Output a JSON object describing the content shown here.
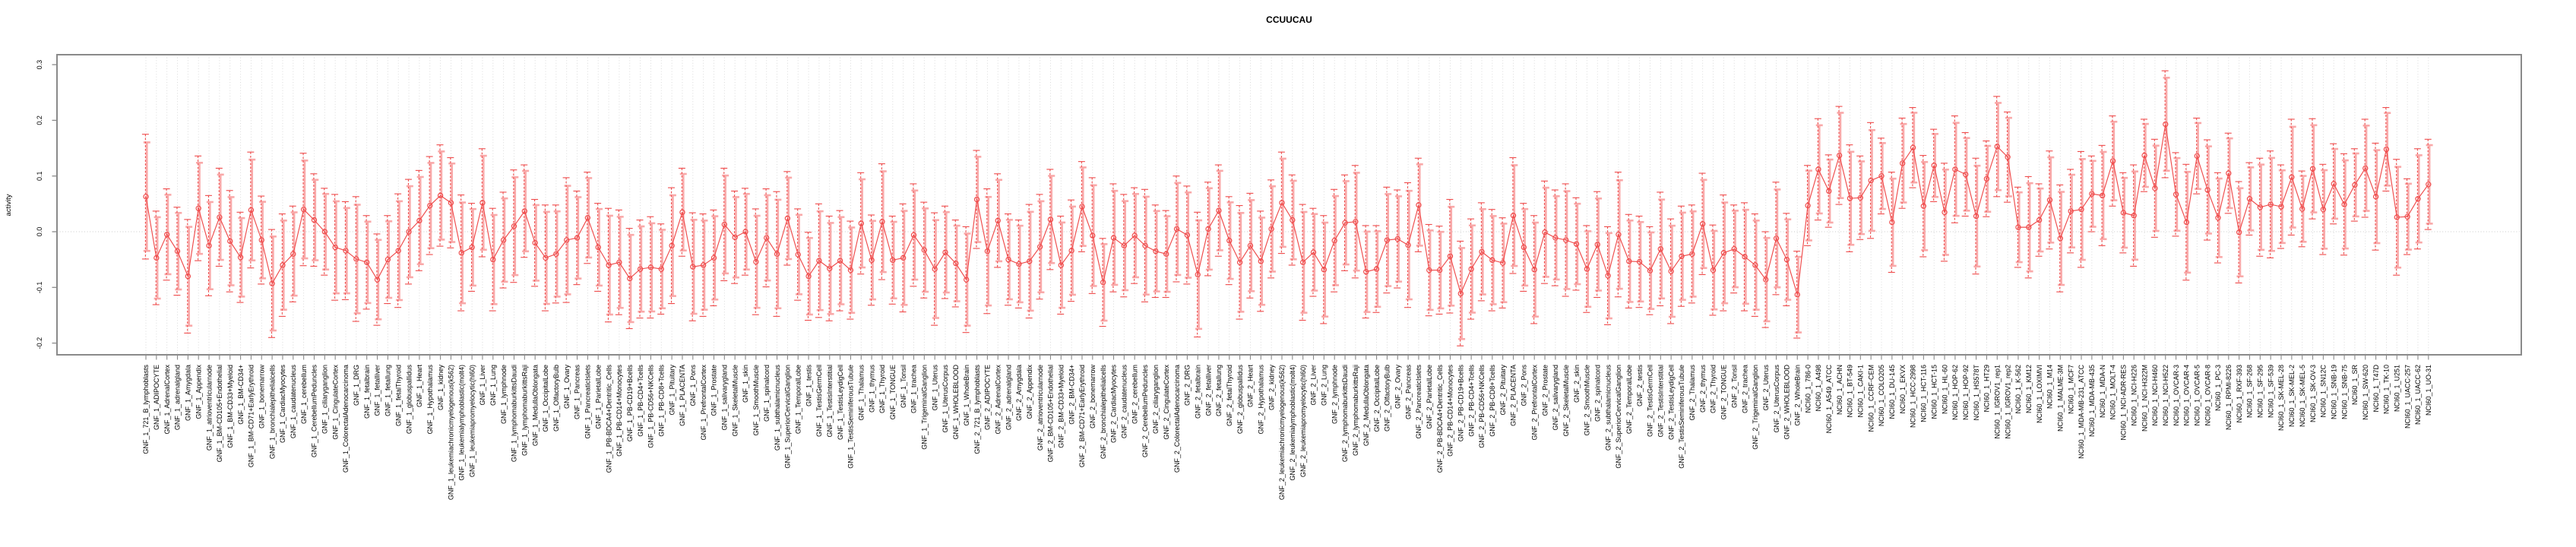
{
  "chart_data": {
    "type": "line",
    "title": "CCUUCAU",
    "xlabel": "",
    "ylabel": "activity",
    "ylim": [
      -0.25,
      0.33
    ],
    "yticks": [
      0.3,
      0.2,
      0.1,
      0.0,
      -0.1,
      -0.2
    ],
    "grid": "vertical dotted gridline per category; dotted horizontal line at 0",
    "legend": "none",
    "marker": "open-circle",
    "line_style": "solid red connecting line with per-point error bars (thin dashed red bar overlaid on thick light-pink bar, both with caps)",
    "colors": {
      "line": "#ef4b4b",
      "marker": "#ef4b4b",
      "errorbar_dashed": "#ef4b4b",
      "errorbar_light": "#f9a9a9",
      "box": "#8a8a8a",
      "grid": "#d6d6d6",
      "zero_line": "#c9c9c9"
    },
    "categories": [
      "GNF_1_721_B_lymphoblasts",
      "GNF_1_ADIPOCYTE",
      "GNF_1_AdrenalCortex",
      "GNF_1_adrenalgland",
      "GNF_1_Amygdala",
      "GNF_1_Appendix",
      "GNF_1_atrioventricularnode",
      "GNF_1_BM-CD105+Endothelial",
      "GNF_1_BM-CD33+Myeloid",
      "GNF_1_BM-CD34+",
      "GNF_1_BM-CD71+EarlyErythroid",
      "GNF_1_bonemarrow",
      "GNF_1_bronchialepithelialcells",
      "GNF_1_CardiacMyocytes",
      "GNF_1_caudatenucleus",
      "GNF_1_cerebellum",
      "GNF_1_CerebellumPeduncles",
      "GNF_1_ciliaryganglion",
      "GNF_1_CingulateCortex",
      "GNF_1_ColorectalAdenocarcinoma",
      "GNF_1_DRG",
      "GNF_1_fetalbrain",
      "GNF_1_fetalliver",
      "GNF_1_fetallung",
      "GNF_1_fetalThyroid",
      "GNF_1_globuspallidus",
      "GNF_1_Heart",
      "GNF_1_Hypothalamus",
      "GNF_1_kidney",
      "GNF_1_leukemiachronicmyelogenous(k562)",
      "GNF_1_leukemialymphoblastic(molt4)",
      "GNF_1_leukemiapromyelocytic(hl60)",
      "GNF_1_Liver",
      "GNF_1_Lung",
      "GNF_1_lymphnode",
      "GNF_1_lymphomaburkittsDaudi",
      "GNF_1_lymphomaburkittsRaji",
      "GNF_1_MedullaOblongata",
      "GNF_1_OccipitalLobe",
      "GNF_1_OlfactoryBulb",
      "GNF_1_Ovary",
      "GNF_1_Pancreas",
      "GNF_1_PancreaticIslets",
      "GNF_1_ParietalLobe",
      "GNF_1_PB-BDCA4+Dentritic_Cells",
      "GNF_1_PB-CD14+Monocytes",
      "GNF_1_PB-CD19+Bcells",
      "GNF_1_PB-CD4+Tcells",
      "GNF_1_PB-CD56+NKCells",
      "GNF_1_PB-CD8+Tcells",
      "GNF_1_Pituitary",
      "GNF_1_PLACENTA",
      "GNF_1_Pons",
      "GNF_1_PrefrontalCortex",
      "GNF_1_Prostate",
      "GNF_1_salivarygland",
      "GNF_1_SkeletalMuscle",
      "GNF_1_skin",
      "GNF_1_SmoothMuscle",
      "GNF_1_spinalcord",
      "GNF_1_subthalamicnucleus",
      "GNF_1_SuperiorCervicalGanglion",
      "GNF_1_TemporalLobe",
      "GNF_1_testis",
      "GNF_1_TestisGermCell",
      "GNF_1_TestisInterstitial",
      "GNF_1_TestisLeydigCell",
      "GNF_1_TestisSeminiferousTubule",
      "GNF_1_Thalamus",
      "GNF_1_thymus",
      "GNF_1_Thyroid",
      "GNF_1_TONGUE",
      "GNF_1_Tonsil",
      "GNF_1_trachea",
      "GNF_1_TrigeminalGanglion",
      "GNF_1_Uterus",
      "GNF_1_UterusCorpus",
      "GNF_1_WHOLEBLOOD",
      "GNF_1_WholeBrain",
      "GNF_2_721_B_lymphoblasts",
      "GNF_2_ADIPOCYTE",
      "GNF_2_AdrenalCortex",
      "GNF_2_adrenalgland",
      "GNF_2_Amygdala",
      "GNF_2_Appendix",
      "GNF_2_atrioventricularnode",
      "GNF_2_BM-CD105+Endothelial",
      "GNF_2_BM-CD33+Myeloid",
      "GNF_2_BM-CD34+",
      "GNF_2_BM-CD71+EarlyErythroid",
      "GNF_2_bonemarrow",
      "GNF_2_bronchialepithelialcells",
      "GNF_2_CardiacMyocytes",
      "GNF_2_caudatenucleus",
      "GNF_2_cerebellum",
      "GNF_2_CerebellumPeduncles",
      "GNF_2_ciliaryganglion",
      "GNF_2_CingulateCortex",
      "GNF_2_ColorectalAdenocarcinoma",
      "GNF_2_DRG",
      "GNF_2_fetalbrain",
      "GNF_2_fetalliver",
      "GNF_2_fetallung",
      "GNF_2_fetalThyroid",
      "GNF_2_globuspallidus",
      "GNF_2_Heart",
      "GNF_2_Hypothalamus",
      "GNF_2_kidney",
      "GNF_2_leukemiachronicmyelogenous(k562)",
      "GNF_2_leukemialymphoblastic(molt4)",
      "GNF_2_leukemiapromyelocytic(hl60)",
      "GNF_2_Liver",
      "GNF_2_Lung",
      "GNF_2_lymphnode",
      "GNF_2_lymphomaburkittsDaudi",
      "GNF_2_lymphomaburkittsRaji",
      "GNF_2_MedullaOblongata",
      "GNF_2_OccipitalLobe",
      "GNF_2_OlfactoryBulb",
      "GNF_2_Ovary",
      "GNF_2_Pancreas",
      "GNF_2_PancreaticIslets",
      "GNF_2_ParietalLobe",
      "GNF_2_PB-BDCA4+Dentritic_Cells",
      "GNF_2_PB-CD14+Monocytes",
      "GNF_2_PB-CD19+Bcells",
      "GNF_2_PB-CD4+Tcells",
      "GNF_2_PB-CD56+NKCells",
      "GNF_2_PB-CD8+Tcells",
      "GNF_2_Pituitary",
      "GNF_2_PLACENTA",
      "GNF_2_Pons",
      "GNF_2_PrefrontalCortex",
      "GNF_2_Prostate",
      "GNF_2_salivarygland",
      "GNF_2_SkeletalMuscle",
      "GNF_2_skin",
      "GNF_2_SmoothMuscle",
      "GNF_2_spinalcord",
      "GNF_2_subthalamicnucleus",
      "GNF_2_SuperiorCervicalGanglion",
      "GNF_2_TemporalLobe",
      "GNF_2_testis",
      "GNF_2_TestisGermCell",
      "GNF_2_TestisInterstitial",
      "GNF_2_TestisLeydigCell",
      "GNF_2_TestisSeminiferousTubule",
      "GNF_2_Thalamus",
      "GNF_2_thymus",
      "GNF_2_Thyroid",
      "GNF_2_TONGUE",
      "GNF_2_Tonsil",
      "GNF_2_trachea",
      "GNF_2_TrigeminalGanglion",
      "GNF_2_Uterus",
      "GNF_2_UterusCorpus",
      "GNF_2_WHOLEBLOOD",
      "GNF_2_WholeBrain",
      "NCI60_1_786-0",
      "NCI60_1_A498",
      "NCI60_1_A549_ATCC",
      "NCI60_1_ACHN",
      "NCI60_1_BT-549",
      "NCI60_1_CAKI-1",
      "NCI60_1_CCRF-CEM",
      "NCI60_1_COLO205",
      "NCI60_1_DU-145",
      "NCI60_1_EKVX",
      "NCI60_1_HCC-2998",
      "NCI60_1_HCT-116",
      "NCI60_1_HCT-15",
      "NCI60_1_HL-60",
      "NCI60_1_HOP-62",
      "NCI60_1_HOP-92",
      "NCI60_1_HS578T",
      "NCI60_1_HT29",
      "NCI60_1_IGROV1_rep1",
      "NCI60_1_IGROV1_rep2",
      "NCI60_1_K-562",
      "NCI60_1_KM12",
      "NCI60_1_LOXIMVI",
      "NCI60_1_M14",
      "NCI60_1_MALME-3M",
      "NCI60_1_MCF7",
      "NCI60_1_MDA-MB-231_ATCC",
      "NCI60_1_MDA-MB-435",
      "NCI60_1_MDA-N",
      "NCI60_1_MOLT-4",
      "NCI60_1_NCI-ADR-RES",
      "NCI60_1_NCI-H226",
      "NCI60_1_NCI-H322M",
      "NCI60_1_NCI-H460",
      "NCI60_1_NCI-H522",
      "NCI60_1_OVCAR-3",
      "NCI60_1_OVCAR-4",
      "NCI60_1_OVCAR-5",
      "NCI60_1_OVCAR-8",
      "NCI60_1_PC-3",
      "NCI60_1_RPMI-8226",
      "NCI60_1_RXF-393",
      "NCI60_1_SF-268",
      "NCI60_1_SF-295",
      "NCI60_1_SF-539",
      "NCI60_1_SK-MEL-28",
      "NCI60_1_SK-MEL-2",
      "NCI60_1_SK-MEL-5",
      "NCI60_1_SK-OV-3",
      "NCI60_1_SN12C",
      "NCI60_1_SNB-19",
      "NCI60_1_SNB-75",
      "NCI60_1_SR",
      "NCI60_1_SW-620",
      "NCI60_1_T47D",
      "NCI60_1_TK-10",
      "NCI60_1_U251",
      "NCI60_1_UACC-257",
      "NCI60_1_UACC-62",
      "NCI60_1_UO-31"
    ],
    "values": [
      0.063,
      -0.047,
      -0.005,
      -0.035,
      -0.08,
      0.042,
      -0.025,
      0.026,
      -0.017,
      -0.046,
      0.039,
      -0.015,
      -0.093,
      -0.06,
      -0.04,
      0.04,
      0.021,
      0.0,
      -0.028,
      -0.034,
      -0.049,
      -0.055,
      -0.086,
      -0.05,
      -0.034,
      0.0,
      0.02,
      0.047,
      0.065,
      0.052,
      -0.038,
      -0.028,
      0.052,
      -0.05,
      -0.015,
      0.01,
      0.037,
      -0.02,
      -0.047,
      -0.04,
      -0.015,
      -0.011,
      0.025,
      -0.028,
      -0.06,
      -0.055,
      -0.084,
      -0.067,
      -0.064,
      -0.067,
      -0.025,
      0.035,
      -0.063,
      -0.06,
      -0.047,
      0.013,
      -0.01,
      0.0,
      -0.054,
      -0.011,
      -0.04,
      0.024,
      -0.041,
      -0.08,
      -0.052,
      -0.066,
      -0.052,
      -0.069,
      0.015,
      -0.051,
      0.018,
      -0.051,
      -0.047,
      -0.006,
      -0.033,
      -0.067,
      -0.037,
      -0.057,
      -0.086,
      0.058,
      -0.035,
      0.02,
      -0.05,
      -0.058,
      -0.053,
      -0.027,
      0.022,
      -0.06,
      -0.034,
      0.045,
      -0.007,
      -0.091,
      -0.011,
      -0.025,
      -0.007,
      -0.025,
      -0.035,
      -0.04,
      0.005,
      -0.006,
      -0.077,
      0.005,
      0.038,
      -0.016,
      -0.055,
      -0.025,
      -0.053,
      0.005,
      0.052,
      0.021,
      -0.055,
      -0.037,
      -0.068,
      -0.016,
      0.016,
      0.018,
      -0.072,
      -0.067,
      -0.015,
      -0.013,
      -0.024,
      0.048,
      -0.069,
      -0.069,
      -0.044,
      -0.111,
      -0.067,
      -0.036,
      -0.051,
      -0.056,
      0.029,
      -0.028,
      -0.068,
      -0.001,
      -0.011,
      -0.015,
      -0.022,
      -0.067,
      -0.023,
      -0.079,
      -0.005,
      -0.053,
      -0.054,
      -0.07,
      -0.031,
      -0.071,
      -0.044,
      -0.04,
      0.014,
      -0.069,
      -0.038,
      -0.031,
      -0.045,
      -0.06,
      -0.086,
      -0.012,
      -0.05,
      -0.113,
      0.047,
      0.112,
      0.073,
      0.137,
      0.06,
      0.061,
      0.092,
      0.1,
      0.017,
      0.123,
      0.151,
      0.046,
      0.119,
      0.035,
      0.112,
      0.103,
      0.028,
      0.095,
      0.153,
      0.134,
      0.008,
      0.008,
      0.021,
      0.057,
      -0.012,
      0.037,
      0.04,
      0.068,
      0.065,
      0.127,
      0.034,
      0.029,
      0.137,
      0.078,
      0.193,
      0.067,
      0.017,
      0.136,
      0.075,
      0.025,
      0.105,
      -0.001,
      0.059,
      0.044,
      0.049,
      0.045,
      0.098,
      0.041,
      0.113,
      0.04,
      0.086,
      0.049,
      0.084,
      0.114,
      0.063,
      0.148,
      0.026,
      0.027,
      0.059,
      0.085
    ],
    "errors": [
      0.112,
      0.084,
      0.082,
      0.079,
      0.102,
      0.094,
      0.09,
      0.088,
      0.091,
      0.081,
      0.104,
      0.079,
      0.097,
      0.092,
      0.086,
      0.101,
      0.083,
      0.078,
      0.095,
      0.088,
      0.112,
      0.084,
      0.082,
      0.079,
      0.102,
      0.094,
      0.09,
      0.088,
      0.091,
      0.081,
      0.104,
      0.079,
      0.097,
      0.092,
      0.086,
      0.101,
      0.083,
      0.078,
      0.095,
      0.088,
      0.112,
      0.084,
      0.082,
      0.079,
      0.102,
      0.094,
      0.09,
      0.088,
      0.091,
      0.081,
      0.104,
      0.079,
      0.097,
      0.092,
      0.086,
      0.101,
      0.083,
      0.078,
      0.095,
      0.088,
      0.112,
      0.084,
      0.082,
      0.079,
      0.102,
      0.094,
      0.09,
      0.088,
      0.091,
      0.081,
      0.104,
      0.079,
      0.097,
      0.092,
      0.086,
      0.101,
      0.083,
      0.078,
      0.095,
      0.088,
      0.112,
      0.084,
      0.082,
      0.079,
      0.102,
      0.094,
      0.09,
      0.088,
      0.091,
      0.081,
      0.104,
      0.079,
      0.097,
      0.092,
      0.086,
      0.101,
      0.083,
      0.078,
      0.095,
      0.088,
      0.112,
      0.084,
      0.082,
      0.079,
      0.102,
      0.094,
      0.09,
      0.088,
      0.091,
      0.081,
      0.104,
      0.079,
      0.097,
      0.092,
      0.086,
      0.101,
      0.083,
      0.078,
      0.095,
      0.088,
      0.112,
      0.084,
      0.082,
      0.079,
      0.102,
      0.094,
      0.09,
      0.088,
      0.091,
      0.081,
      0.104,
      0.079,
      0.097,
      0.092,
      0.086,
      0.101,
      0.083,
      0.078,
      0.095,
      0.088,
      0.112,
      0.084,
      0.082,
      0.079,
      0.102,
      0.094,
      0.09,
      0.088,
      0.091,
      0.081,
      0.104,
      0.079,
      0.097,
      0.092,
      0.086,
      0.101,
      0.083,
      0.078,
      0.072,
      0.091,
      0.065,
      0.088,
      0.096,
      0.075,
      0.104,
      0.068,
      0.09,
      0.081,
      0.072,
      0.091,
      0.065,
      0.088,
      0.096,
      0.075,
      0.104,
      0.068,
      0.09,
      0.081,
      0.072,
      0.091,
      0.065,
      0.088,
      0.096,
      0.075,
      0.104,
      0.068,
      0.09,
      0.081,
      0.072,
      0.091,
      0.065,
      0.088,
      0.096,
      0.075,
      0.104,
      0.068,
      0.09,
      0.081,
      0.072,
      0.091,
      0.065,
      0.088,
      0.096,
      0.075,
      0.104,
      0.068,
      0.09,
      0.081,
      0.072,
      0.091,
      0.065,
      0.088,
      0.096,
      0.075,
      0.104,
      0.068,
      0.09,
      0.081
    ]
  }
}
